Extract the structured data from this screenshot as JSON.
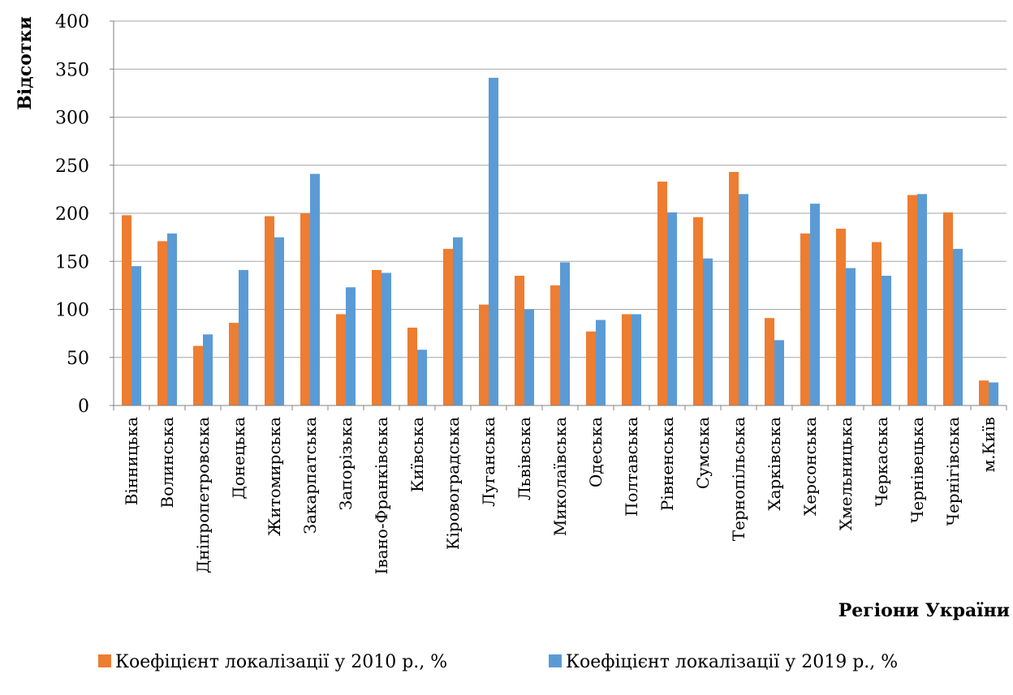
{
  "chart_data": {
    "type": "bar",
    "title": "",
    "xlabel": "Регіони України",
    "ylabel": "Відсотки",
    "ylim": [
      0,
      400
    ],
    "yticks": [
      0,
      50,
      100,
      150,
      200,
      250,
      300,
      350,
      400
    ],
    "grid": true,
    "legend_position": "bottom",
    "categories": [
      "Вінницька",
      "Волинська",
      "Дніпропетровська",
      "Донецька",
      "Житомирська",
      "Закарпатська",
      "Запорізька",
      "Івано-Франківська",
      "Київська",
      "Кіровоградська",
      "Луганська",
      "Львівська",
      "Миколаївська",
      "Одеська",
      "Полтавська",
      "Рівненська",
      "Сумська",
      "Тернопільська",
      "Харківська",
      "Херсонська",
      "Хмельницька",
      "Черкаська",
      "Чернівецька",
      "Чернігівська",
      "м.Київ"
    ],
    "series": [
      {
        "name": "Коефіцієнт локалізації у 2010 р., %",
        "color": "#ED7D31",
        "values": [
          198,
          171,
          62,
          86,
          197,
          200,
          95,
          141,
          81,
          163,
          105,
          135,
          125,
          77,
          95,
          233,
          196,
          243,
          91,
          179,
          184,
          170,
          219,
          201,
          26
        ]
      },
      {
        "name": "Коефіцієнт локалізації у 2019 р., %",
        "color": "#5B9BD5",
        "values": [
          145,
          179,
          74,
          141,
          175,
          241,
          123,
          138,
          58,
          175,
          341,
          100,
          149,
          89,
          95,
          201,
          153,
          220,
          68,
          210,
          143,
          135,
          220,
          163,
          24
        ]
      }
    ]
  }
}
